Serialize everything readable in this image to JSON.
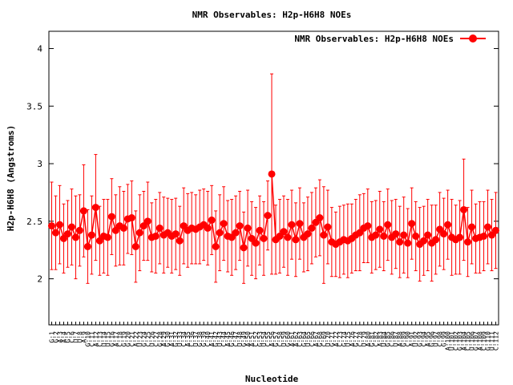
{
  "chart_data": {
    "type": "line",
    "title": "NMR Observables: H2p-H6H8 NOEs",
    "xlabel": "Nucleotide",
    "ylabel": "H2p-H6H8 (Angstroms)",
    "ylim": [
      1.6,
      4.15
    ],
    "yticks": [
      "2",
      "2.5",
      "3",
      "3.5",
      "4"
    ],
    "ytick_values": [
      2,
      2.5,
      3,
      3.5,
      4
    ],
    "grid": false,
    "legend_position": "top-right",
    "colors": {
      "series": "#ff0000",
      "axis": "#000000"
    },
    "series": [
      {
        "name": "NMR Observables: H2p-H6H8 NOEs",
        "gap_after_index": 54,
        "values": [
          2.46,
          2.4,
          2.47,
          2.35,
          2.39,
          2.45,
          2.36,
          2.42,
          2.59,
          2.28,
          2.38,
          2.62,
          2.33,
          2.37,
          2.36,
          2.54,
          2.42,
          2.46,
          2.44,
          2.52,
          2.53,
          2.28,
          2.4,
          2.46,
          2.5,
          2.36,
          2.37,
          2.44,
          2.38,
          2.4,
          2.37,
          2.39,
          2.33,
          2.46,
          2.42,
          2.44,
          2.43,
          2.45,
          2.47,
          2.44,
          2.51,
          2.28,
          2.4,
          2.48,
          2.37,
          2.36,
          2.4,
          2.46,
          2.27,
          2.44,
          2.35,
          2.31,
          2.42,
          2.35,
          2.55,
          2.91,
          2.34,
          2.37,
          2.41,
          2.36,
          2.47,
          2.34,
          2.48,
          2.36,
          2.39,
          2.44,
          2.49,
          2.53,
          2.38,
          2.45,
          2.32,
          2.3,
          2.32,
          2.34,
          2.33,
          2.35,
          2.38,
          2.4,
          2.44,
          2.46,
          2.36,
          2.38,
          2.43,
          2.37,
          2.47,
          2.36,
          2.39,
          2.32,
          2.38,
          2.31,
          2.48,
          2.37,
          2.3,
          2.33,
          2.38,
          2.31,
          2.34,
          2.43,
          2.39,
          2.47,
          2.36,
          2.34,
          2.36,
          2.6,
          2.32,
          2.45,
          2.35,
          2.36,
          2.37,
          2.45,
          2.38,
          2.42
        ],
        "errors": [
          0.38,
          0.32,
          0.34,
          0.3,
          0.29,
          0.33,
          0.36,
          0.31,
          0.4,
          0.32,
          0.34,
          0.46,
          0.3,
          0.32,
          0.33,
          0.33,
          0.31,
          0.34,
          0.32,
          0.3,
          0.32,
          0.31,
          0.33,
          0.3,
          0.34,
          0.3,
          0.32,
          0.31,
          0.33,
          0.3,
          0.32,
          0.31,
          0.3,
          0.33,
          0.32,
          0.31,
          0.3,
          0.32,
          0.31,
          0.32,
          0.3,
          0.31,
          0.33,
          0.32,
          0.31,
          0.33,
          0.32,
          0.3,
          0.31,
          0.33,
          0.32,
          0.31,
          0.3,
          0.32,
          0.3,
          0.87,
          0.3,
          0.32,
          0.31,
          0.33,
          0.3,
          0.32,
          0.31,
          0.3,
          0.32,
          0.31,
          0.3,
          0.33,
          0.42,
          0.32,
          0.3,
          0.28,
          0.31,
          0.3,
          0.32,
          0.3,
          0.31,
          0.33,
          0.3,
          0.32,
          0.31,
          0.3,
          0.33,
          0.3,
          0.31,
          0.32,
          0.3,
          0.31,
          0.33,
          0.3,
          0.31,
          0.3,
          0.32,
          0.3,
          0.31,
          0.33,
          0.3,
          0.32,
          0.31,
          0.3,
          0.33,
          0.3,
          0.32,
          0.44,
          0.3,
          0.32,
          0.3,
          0.31,
          0.3,
          0.32,
          0.31,
          0.33
        ]
      }
    ],
    "x_labels": [
      "G:1",
      "G:2",
      "A:3",
      "A:4",
      "G:5",
      "C:6",
      "U:7",
      "U:8",
      "A:9",
      "G:10",
      "C:11",
      "A:12",
      "C:13",
      "U:14",
      "U:15",
      "G:16",
      "A:17",
      "C:18",
      "G:19",
      "G:20",
      "C:21",
      "A:22",
      "U:23",
      "G:24",
      "C:25",
      "U:26",
      "C:27",
      "G:28",
      "A:29",
      "G:30",
      "A:31",
      "G:32",
      "U:33",
      "C:34",
      "A:35",
      "C:36",
      "U:37",
      "G:38",
      "G:39",
      "C:40",
      "A:41",
      "G:42",
      "U:43",
      "C:44",
      "A:45",
      "G:46",
      "C:47",
      "U:48",
      "G:49",
      "A:50",
      "A:51",
      "C:52",
      "G:53",
      "U:54",
      "C:55",
      "A:56",
      "G:57",
      "C:58",
      "U:59",
      "G:60",
      "A:61",
      "A:62",
      "C:63",
      "G:64",
      "U:65",
      "C:66",
      "A:67",
      "G:68",
      "C:69",
      "U:70",
      "G:71",
      "A:72",
      "C:73",
      "G:74",
      "U:75",
      "A:76",
      "G:77",
      "C:78",
      "U:79",
      "A:80",
      "G:81",
      "C:82",
      "A:83",
      "U:84",
      "G:85",
      "C:86",
      "U:87",
      "A:88",
      "G:89",
      "C:90",
      "A:91",
      "U:92",
      "G:93",
      "C:94",
      "A:95",
      "G:96",
      "U:97",
      "C:98",
      "G:99",
      "A:100",
      "U:101",
      "C:102",
      "G:103",
      "A:104",
      "C:105",
      "U:106",
      "G:107",
      "A:108",
      "C:109",
      "G:110",
      "U:111",
      "C:112"
    ]
  }
}
